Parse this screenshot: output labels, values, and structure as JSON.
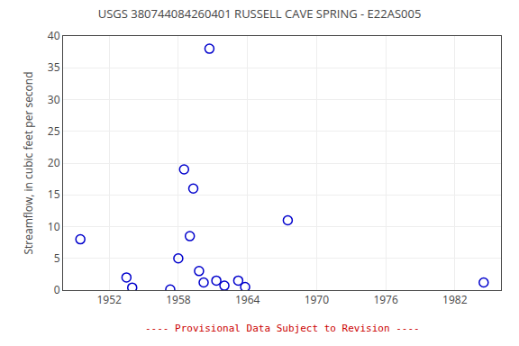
{
  "chart_data": {
    "type": "scatter",
    "title": "USGS 380744084260401 RUSSELL CAVE SPRING - E22AS005",
    "y_label": "Streamflow, in cubic feet per second",
    "x": [
      1949.5,
      1953.5,
      1954.0,
      1957.3,
      1958.0,
      1958.5,
      1959.0,
      1959.3,
      1959.8,
      1960.2,
      1960.7,
      1961.3,
      1962.0,
      1963.2,
      1963.8,
      1967.5,
      1984.5
    ],
    "values": [
      8.0,
      2.0,
      0.4,
      0.1,
      5.0,
      19.0,
      8.5,
      16.0,
      3.0,
      1.2,
      38.0,
      1.5,
      0.7,
      1.5,
      0.5,
      11.0,
      1.2
    ],
    "color": "#0000CC",
    "marker": "circle-open",
    "xlim": [
      1948,
      1986
    ],
    "ylim": [
      0,
      40
    ],
    "xticks": [
      1952,
      1958,
      1964,
      1970,
      1976,
      1982
    ],
    "yticks": [
      0,
      5,
      10,
      15,
      20,
      25,
      30,
      35,
      40
    ],
    "grid": true,
    "annotations": [
      {
        "text": "---- Provisional Data Subject to Revision ----",
        "color": "#cc0000"
      }
    ]
  }
}
